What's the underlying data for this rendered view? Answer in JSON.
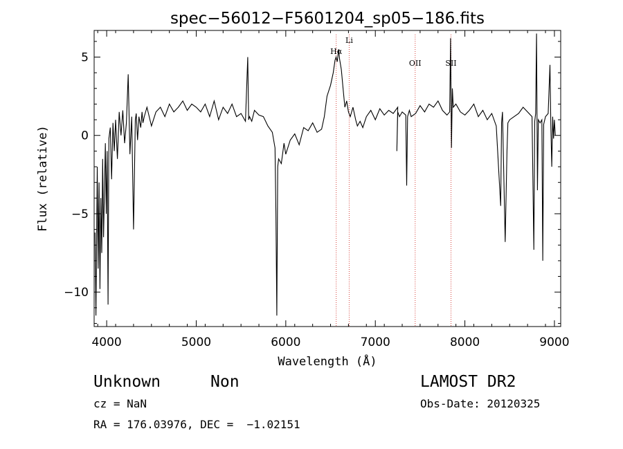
{
  "chart_data": {
    "type": "line",
    "title": "spec−56012−F5601204_sp05−186.fits",
    "xlabel": "Wavelength (Å)",
    "ylabel": "Flux (relative)",
    "xlim": [
      3860,
      9070
    ],
    "ylim": [
      -12.2,
      6.7
    ],
    "xticks": [
      4000,
      5000,
      6000,
      7000,
      8000,
      9000
    ],
    "yticks": [
      -10,
      -5,
      0,
      5
    ],
    "ytick_labels": [
      "−10",
      "−5",
      "0",
      "5"
    ],
    "grid": false,
    "series": [
      {
        "x": [
          3870,
          3880,
          3895,
          3905,
          3915,
          3925,
          3935,
          3945,
          3955,
          3965,
          3975,
          3985,
          3995,
          4005,
          4015,
          4025,
          4040,
          4055,
          4070,
          4085,
          4100,
          4120,
          4140,
          4160,
          4180,
          4200,
          4220,
          4240,
          4260,
          4280,
          4300,
          4320,
          4330,
          4345,
          4360,
          4380,
          4395,
          4405,
          4420,
          4450,
          4500,
          4550,
          4600,
          4650,
          4700,
          4750,
          4800,
          4850,
          4900,
          4950,
          5000,
          5050,
          5100,
          5150,
          5200,
          5250,
          5300,
          5350,
          5400,
          5450,
          5500,
          5550,
          5575,
          5585,
          5595,
          5620,
          5650,
          5700,
          5750,
          5800,
          5850,
          5880,
          5890,
          5900,
          5910,
          5920,
          5950,
          5980,
          6000,
          6050,
          6100,
          6150,
          6200,
          6250,
          6300,
          6350,
          6400,
          6430,
          6460,
          6500,
          6530,
          6550,
          6562,
          6575,
          6590,
          6600,
          6620,
          6640,
          6660,
          6680,
          6700,
          6720,
          6750,
          6780,
          6800,
          6830,
          6860,
          6900,
          6950,
          7000,
          7050,
          7100,
          7150,
          7200,
          7250,
          7240,
          7250,
          7270,
          7300,
          7340,
          7350,
          7360,
          7380,
          7400,
          7450,
          7500,
          7550,
          7600,
          7650,
          7700,
          7750,
          7800,
          7830,
          7840,
          7850,
          7860,
          7870,
          7900,
          7950,
          8000,
          8050,
          8100,
          8150,
          8200,
          8250,
          8300,
          8350,
          8400,
          8410,
          8420,
          8450,
          8470,
          8480,
          8500,
          8550,
          8600,
          8650,
          8700,
          8750,
          8770,
          8780,
          8790,
          8800,
          8810,
          8820,
          8840,
          8860,
          8870,
          8880,
          8900,
          8930,
          8950,
          8960,
          8970,
          8980,
          8990,
          9000,
          9010
        ],
        "y": [
          -6.2,
          -11.5,
          -2.0,
          -8.5,
          -3.0,
          -9.8,
          -4.0,
          -7.5,
          -1.5,
          -6.5,
          -3.5,
          -0.5,
          -5.0,
          -1.0,
          -10.8,
          -0.2,
          0.5,
          -2.8,
          0.8,
          -1.0,
          1.0,
          -1.5,
          1.5,
          0.0,
          1.6,
          -0.5,
          0.8,
          3.9,
          -1.2,
          1.2,
          -6.0,
          1.0,
          1.4,
          -0.3,
          1.2,
          0.5,
          1.5,
          0.8,
          1.2,
          1.8,
          0.6,
          1.5,
          1.8,
          1.2,
          2.0,
          1.5,
          1.8,
          2.2,
          1.6,
          2.0,
          1.8,
          1.5,
          2.0,
          1.2,
          2.2,
          1.0,
          1.8,
          1.4,
          2.0,
          1.2,
          1.4,
          0.9,
          5.0,
          1.0,
          1.2,
          0.9,
          1.6,
          1.3,
          1.2,
          0.6,
          0.2,
          -0.8,
          -5.0,
          -11.5,
          -2.0,
          -1.5,
          -1.8,
          -0.5,
          -1.2,
          -0.3,
          0.1,
          -0.6,
          0.5,
          0.3,
          0.8,
          0.2,
          0.4,
          1.2,
          2.5,
          3.2,
          4.0,
          4.8,
          5.0,
          4.7,
          5.5,
          4.9,
          4.2,
          3.0,
          1.8,
          2.2,
          1.5,
          1.2,
          1.8,
          1.0,
          0.6,
          0.9,
          0.5,
          1.2,
          1.6,
          1.0,
          1.7,
          1.3,
          1.6,
          1.4,
          1.8,
          -1.0,
          1.5,
          1.2,
          1.5,
          1.3,
          -3.2,
          1.2,
          1.6,
          1.2,
          1.4,
          1.9,
          1.5,
          2.0,
          1.8,
          2.2,
          1.6,
          1.3,
          1.5,
          6.2,
          -0.8,
          3.0,
          1.8,
          2.0,
          1.5,
          1.3,
          1.6,
          2.0,
          1.2,
          1.6,
          1.0,
          1.4,
          0.6,
          -4.5,
          0.8,
          1.5,
          -6.8,
          -1.0,
          0.8,
          1.0,
          1.2,
          1.4,
          1.8,
          1.5,
          1.2,
          -7.3,
          0.9,
          1.4,
          6.5,
          -3.5,
          1.0,
          0.8,
          1.0,
          -8.0,
          0.7,
          1.2,
          1.4,
          4.5,
          0.5,
          -2.0,
          1.2,
          -0.2,
          1.0,
          0.0
        ]
      }
    ],
    "lines": [
      {
        "label": "Hα",
        "x": 6563
      },
      {
        "label": "Li",
        "x": 6708
      },
      {
        "label": "OII",
        "x": 7445
      },
      {
        "label": "SII",
        "x": 7845
      }
    ],
    "line_color": "#d6403a"
  },
  "info": {
    "class": "Unknown",
    "subclass": "Non",
    "cz": "cz = NaN",
    "radec": "RA = 176.03976, DEC =  −1.02151",
    "survey": "LAMOST DR2",
    "obsdate": "Obs-Date: 20120325"
  }
}
